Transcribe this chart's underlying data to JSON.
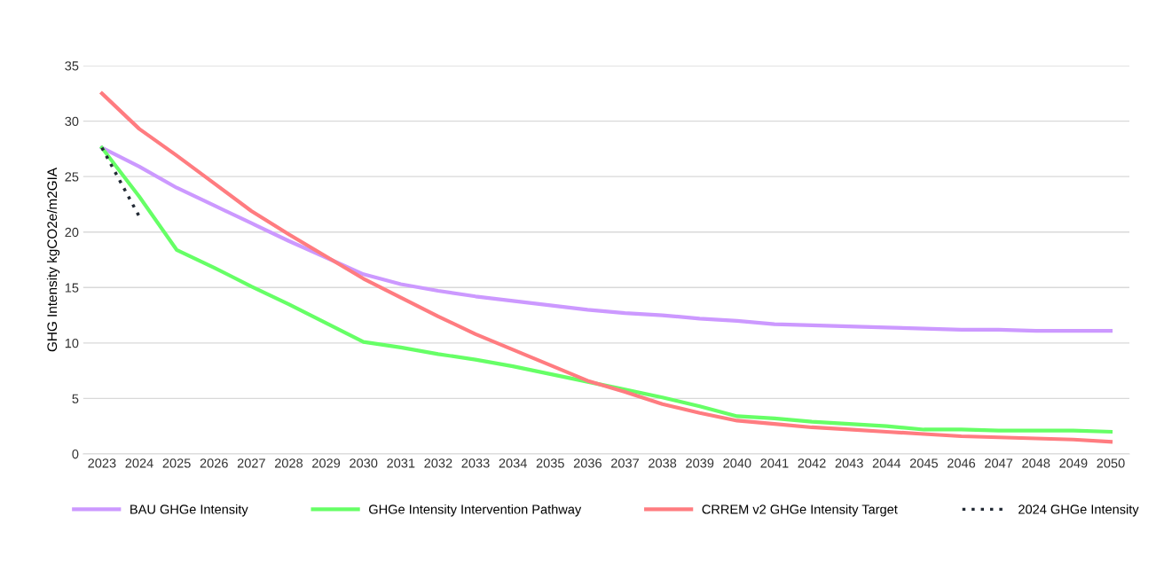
{
  "chart_data": {
    "type": "line",
    "ylabel": "GHG Intensity kgCO2e/m2GIA",
    "categories": [
      "2023",
      "2024",
      "2025",
      "2026",
      "2027",
      "2028",
      "2029",
      "2030",
      "2031",
      "2032",
      "2033",
      "2034",
      "2035",
      "2036",
      "2037",
      "2038",
      "2039",
      "2040",
      "2041",
      "2042",
      "2043",
      "2044",
      "2045",
      "2046",
      "2047",
      "2048",
      "2049",
      "2050"
    ],
    "series": [
      {
        "name": "BAU GHGe Intensity",
        "color": "#cc99ff",
        "line_style": "solid",
        "values": [
          27.6,
          25.9,
          24.0,
          22.4,
          20.8,
          19.2,
          17.7,
          16.2,
          15.3,
          14.7,
          14.2,
          13.8,
          13.4,
          13.0,
          12.7,
          12.5,
          12.2,
          12.0,
          11.7,
          11.6,
          11.5,
          11.4,
          11.3,
          11.2,
          11.2,
          11.1,
          11.1,
          11.1
        ]
      },
      {
        "name": "GHGe Intensity Intervention Pathway",
        "color": "#66ff66",
        "line_style": "solid",
        "values": [
          27.6,
          23.2,
          18.4,
          16.8,
          15.1,
          13.5,
          11.8,
          10.1,
          9.6,
          9.0,
          8.5,
          7.9,
          7.2,
          6.5,
          5.8,
          5.1,
          4.3,
          3.4,
          3.2,
          2.9,
          2.7,
          2.5,
          2.2,
          2.2,
          2.1,
          2.1,
          2.1,
          2.0
        ]
      },
      {
        "name": "CRREM v2 GHGe Intensity Target",
        "color": "#ff7c80",
        "line_style": "solid",
        "values": [
          32.5,
          29.3,
          26.9,
          24.4,
          21.9,
          19.8,
          17.8,
          15.8,
          14.1,
          12.4,
          10.8,
          9.4,
          8.0,
          6.6,
          5.6,
          4.5,
          3.7,
          3.0,
          2.7,
          2.4,
          2.2,
          2.0,
          1.8,
          1.6,
          1.5,
          1.4,
          1.3,
          1.1
        ]
      },
      {
        "name": "2024 GHGe Intensity",
        "color": "#222a35",
        "line_style": "dotted",
        "values": [
          27.6,
          21.4,
          null,
          null,
          null,
          null,
          null,
          null,
          null,
          null,
          null,
          null,
          null,
          null,
          null,
          null,
          null,
          null,
          null,
          null,
          null,
          null,
          null,
          null,
          null,
          null,
          null,
          null
        ]
      }
    ],
    "ylim": [
      0,
      35
    ],
    "yticks": [
      0,
      5,
      10,
      15,
      20,
      25,
      30,
      35
    ],
    "grid": "y",
    "legend": "bottom",
    "marker": "none"
  }
}
